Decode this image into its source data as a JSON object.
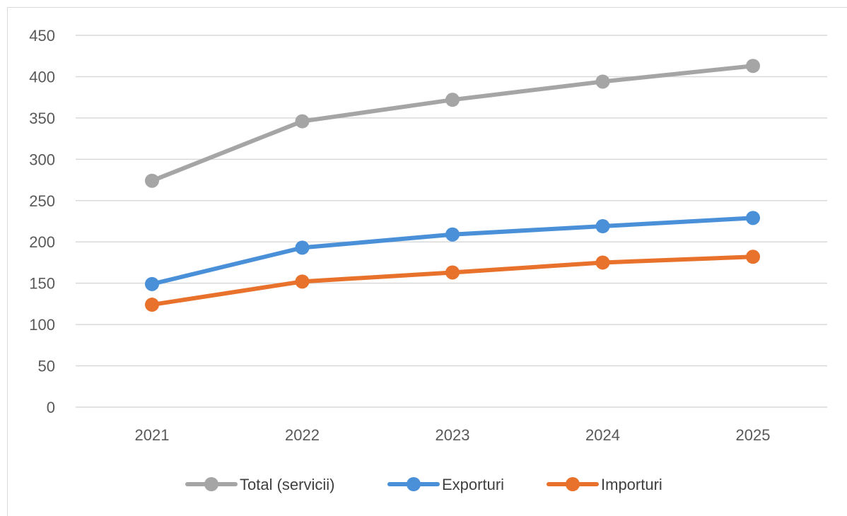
{
  "chart_data": {
    "type": "line",
    "x": [
      "2021",
      "2022",
      "2023",
      "2024",
      "2025"
    ],
    "ylim": [
      0,
      450
    ],
    "yticks": [
      0,
      50,
      100,
      150,
      200,
      250,
      300,
      350,
      400,
      450
    ],
    "grid": true,
    "legend_position": "bottom",
    "title": "",
    "xlabel": "",
    "ylabel": "",
    "series": [
      {
        "name": "Total (servicii)",
        "color": "#a5a5a5",
        "values": [
          274,
          346,
          372,
          394,
          413
        ]
      },
      {
        "name": "Exporturi",
        "color": "#4a90d9",
        "values": [
          149,
          193,
          209,
          219,
          229
        ]
      },
      {
        "name": "Importuri",
        "color": "#e8712b",
        "values": [
          124,
          152,
          163,
          175,
          182
        ]
      }
    ]
  }
}
